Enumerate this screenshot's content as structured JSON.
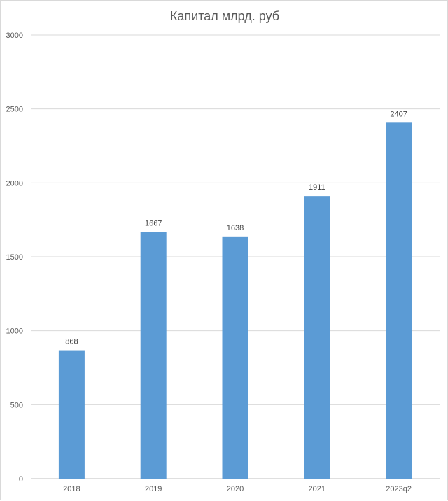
{
  "chart_data": {
    "type": "bar",
    "title": "Капитал млрд. руб",
    "categories": [
      "2018",
      "2019",
      "2020",
      "2021",
      "2023q2"
    ],
    "values": [
      868,
      1667,
      1638,
      1911,
      2407
    ],
    "data_labels": [
      "868",
      "1667",
      "1638",
      "1911",
      "2407"
    ],
    "ylim": [
      0,
      3000
    ],
    "yticks": [
      0,
      500,
      1000,
      1500,
      2000,
      2500,
      3000
    ],
    "ytick_labels": [
      "0",
      "500",
      "1000",
      "1500",
      "2000",
      "2500",
      "3000"
    ],
    "xlabel": "",
    "ylabel": "",
    "grid": true,
    "legend": "none",
    "colors": {
      "bar": "#5b9bd5",
      "grid": "#d9d9d9",
      "axis": "#bfbfbf",
      "text": "#595959"
    }
  }
}
